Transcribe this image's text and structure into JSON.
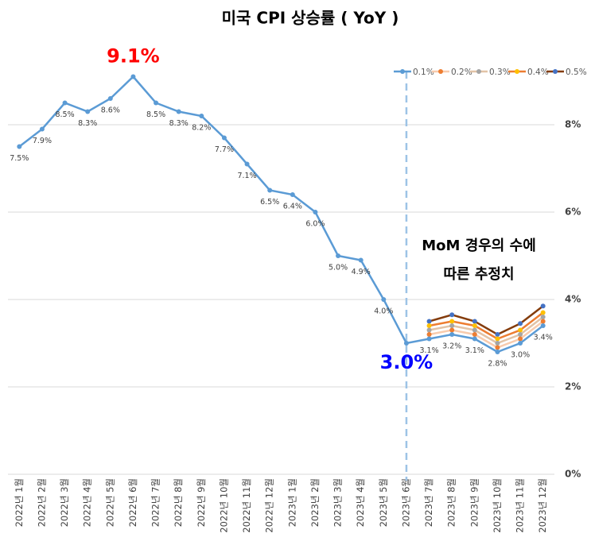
{
  "chart_data": {
    "type": "line",
    "title": "미국 CPI 상승률 ( YoY )",
    "categories": [
      "2022년 1월",
      "2022년 2월",
      "2022년 3월",
      "2022년 4월",
      "2022년 5월",
      "2022년 6월",
      "2022년 7월",
      "2022년 8월",
      "2022년 9월",
      "2022년 10월",
      "2022년 11월",
      "2022년 12월",
      "2023년 1월",
      "2023년 2월",
      "2023년 3월",
      "2023년 4월",
      "2023년 5월",
      "2023년 6월",
      "2023년 7월",
      "2023년 8월",
      "2023년 9월",
      "2023년 10월",
      "2023년 11월",
      "2023년 12월"
    ],
    "series": [
      {
        "name": "0.1%",
        "color": "#5b9bd5",
        "marker_color": "#5b9bd5",
        "values": [
          7.5,
          7.9,
          8.5,
          8.3,
          8.6,
          9.1,
          8.5,
          8.3,
          8.2,
          7.7,
          7.1,
          6.5,
          6.4,
          6.0,
          5.0,
          4.9,
          4.0,
          3.0,
          3.1,
          3.2,
          3.1,
          2.8,
          3.0,
          3.4
        ],
        "value_labels": [
          "7.5%",
          "7.9%",
          "8.5%",
          "8.3%",
          "8.6%",
          null,
          "8.5%",
          "8.3%",
          "8.2%",
          "7.7%",
          "7.1%",
          "6.5%",
          "6.4%",
          "6.0%",
          "5.0%",
          "4.9%",
          "4.0%",
          null,
          "3.1%",
          "3.2%",
          "3.1%",
          "2.8%",
          "3.0%",
          "3.4%"
        ]
      },
      {
        "name": "0.2%",
        "color": "#f8cbad",
        "marker_color": "#ed7d31",
        "values": [
          null,
          null,
          null,
          null,
          null,
          null,
          null,
          null,
          null,
          null,
          null,
          null,
          null,
          null,
          null,
          null,
          null,
          null,
          3.2,
          3.3,
          3.2,
          2.9,
          3.1,
          3.5
        ]
      },
      {
        "name": "0.3%",
        "color": "#e2c3a6",
        "marker_color": "#a5a5a5",
        "values": [
          null,
          null,
          null,
          null,
          null,
          null,
          null,
          null,
          null,
          null,
          null,
          null,
          null,
          null,
          null,
          null,
          null,
          null,
          3.3,
          3.4,
          3.3,
          3.0,
          3.2,
          3.6
        ]
      },
      {
        "name": "0.4%",
        "color": "#ed7d31",
        "marker_color": "#ffc000",
        "values": [
          null,
          null,
          null,
          null,
          null,
          null,
          null,
          null,
          null,
          null,
          null,
          null,
          null,
          null,
          null,
          null,
          null,
          null,
          3.4,
          3.5,
          3.4,
          3.1,
          3.3,
          3.7
        ]
      },
      {
        "name": "0.5%",
        "color": "#843c0c",
        "marker_color": "#4472c4",
        "values": [
          null,
          null,
          null,
          null,
          null,
          null,
          null,
          null,
          null,
          null,
          null,
          null,
          null,
          null,
          null,
          null,
          null,
          null,
          3.5,
          3.65,
          3.5,
          3.2,
          3.45,
          3.85
        ]
      }
    ],
    "annotations": [
      {
        "text": "9.1%",
        "color": "#ff0000"
      },
      {
        "text": "3.0%",
        "color": "#0000ff"
      }
    ],
    "note": [
      "MoM 경우의 수에",
      "따른 추정치"
    ],
    "ylim": [
      0,
      10
    ],
    "yticks": [
      {
        "value": 0,
        "label": "0%"
      },
      {
        "value": 2,
        "label": "2%"
      },
      {
        "value": 4,
        "label": "4%"
      },
      {
        "value": 6,
        "label": "6%"
      },
      {
        "value": 8,
        "label": "8%"
      }
    ],
    "grid": true,
    "legend": "top-right"
  }
}
